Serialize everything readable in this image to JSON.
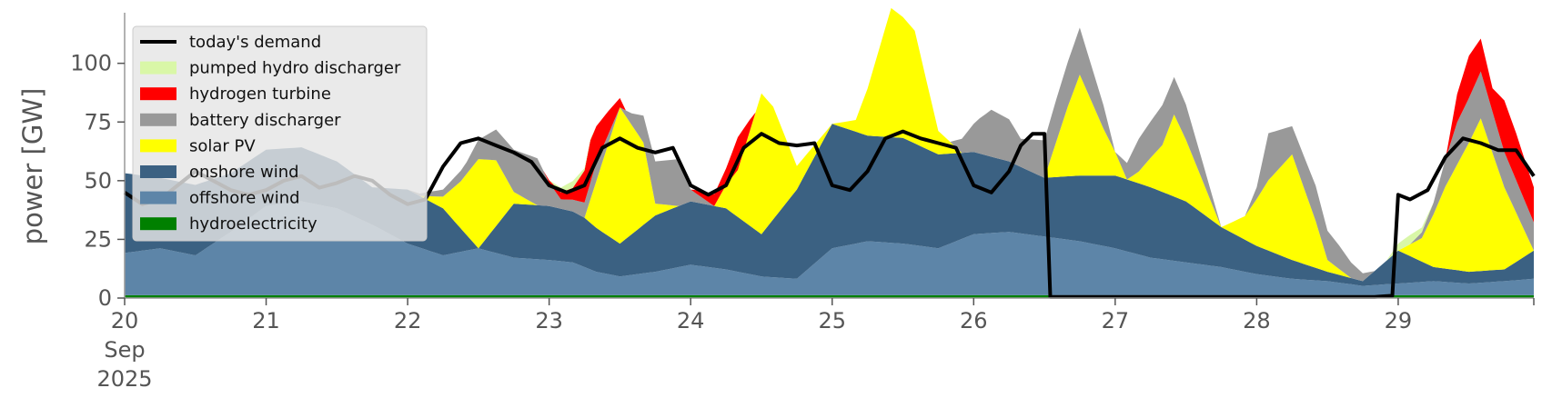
{
  "chart_data": {
    "type": "area",
    "ylabel": "power [GW]",
    "ylim": [
      0,
      120
    ],
    "yticks": [
      0,
      25,
      50,
      75,
      100
    ],
    "xlim": [
      0,
      239
    ],
    "xticks": [
      {
        "h": 0,
        "label": "20",
        "sub": [
          "Sep",
          "2025"
        ]
      },
      {
        "h": 24,
        "label": "21"
      },
      {
        "h": 48,
        "label": "22"
      },
      {
        "h": 72,
        "label": "23"
      },
      {
        "h": 96,
        "label": "24"
      },
      {
        "h": 120,
        "label": "25"
      },
      {
        "h": 144,
        "label": "26"
      },
      {
        "h": 168,
        "label": "27"
      },
      {
        "h": 192,
        "label": "28"
      },
      {
        "h": 216,
        "label": "29"
      }
    ],
    "grid": false,
    "legend_position": "top-left",
    "stack_order": [
      "hydroelectricity",
      "offshore wind",
      "onshore wind",
      "solar PV",
      "battery discharger",
      "hydrogen turbine",
      "pumped hydro discharger"
    ],
    "legend": [
      {
        "label": "today's demand",
        "kind": "line",
        "color": "#000000"
      },
      {
        "label": "pumped hydro discharger",
        "kind": "area",
        "color": "#d9f7a7"
      },
      {
        "label": "hydrogen turbine",
        "kind": "area",
        "color": "#ff0000"
      },
      {
        "label": "battery discharger",
        "kind": "area",
        "color": "#999999"
      },
      {
        "label": "solar PV",
        "kind": "area",
        "color": "#ffff00"
      },
      {
        "label": "onshore wind",
        "kind": "area",
        "color": "#3b6182"
      },
      {
        "label": "offshore wind",
        "kind": "area",
        "color": "#5d85a8"
      },
      {
        "label": "hydroelectricity",
        "kind": "area",
        "color": "#008000"
      }
    ],
    "series": [
      {
        "name": "hydroelectricity",
        "color": "#008000",
        "x": [
          0,
          239
        ],
        "values": [
          1.2,
          1.2
        ]
      },
      {
        "name": "offshore wind",
        "color": "#5d85a8",
        "x": [
          0,
          6,
          12,
          18,
          24,
          30,
          36,
          42,
          48,
          54,
          60,
          66,
          72,
          76,
          80,
          84,
          90,
          96,
          102,
          108,
          114,
          120,
          126,
          132,
          138,
          144,
          150,
          156,
          162,
          168,
          174,
          180,
          186,
          192,
          198,
          204,
          210,
          216,
          222,
          228,
          234,
          239
        ],
        "values": [
          18,
          20,
          17,
          27,
          38,
          40,
          37,
          30,
          22,
          17,
          20,
          16,
          15,
          14,
          10,
          8,
          10,
          13,
          11,
          8,
          7,
          20,
          23,
          22,
          20,
          26,
          27,
          25,
          23,
          20,
          16,
          14,
          12,
          9,
          7,
          6,
          4,
          5,
          6,
          5,
          6,
          7
        ]
      },
      {
        "name": "onshore wind",
        "color": "#3b6182",
        "x": [
          0,
          6,
          12,
          18,
          24,
          30,
          36,
          42,
          48,
          54,
          60,
          66,
          72,
          78,
          84,
          90,
          96,
          102,
          108,
          114,
          120,
          126,
          132,
          138,
          144,
          150,
          156,
          162,
          168,
          174,
          180,
          186,
          192,
          198,
          204,
          210,
          216,
          222,
          228,
          234,
          239
        ],
        "values": [
          34,
          30,
          30,
          25,
          24,
          23,
          20,
          16,
          23,
          20,
          0,
          23,
          23,
          21,
          14,
          24,
          27,
          26,
          18,
          38,
          53,
          45,
          45,
          40,
          35,
          30,
          25,
          28,
          31,
          30,
          26,
          17,
          12,
          8,
          4,
          2,
          14,
          6,
          5,
          5,
          12
        ]
      },
      {
        "name": "solar PV",
        "color": "#ffff00",
        "x": [
          0,
          48,
          50,
          54,
          57,
          60,
          63,
          66,
          70,
          72,
          78,
          80,
          84,
          88,
          90,
          94,
          96,
          100,
          104,
          108,
          110,
          114,
          120,
          124,
          126,
          130,
          134,
          138,
          142,
          146,
          150,
          154,
          156,
          160,
          162,
          166,
          170,
          172,
          176,
          178,
          186,
          190,
          194,
          198,
          202,
          204,
          208,
          210,
          216,
          220,
          224,
          228,
          230,
          234,
          239
        ],
        "values": [
          0,
          0,
          0,
          5,
          20,
          38,
          28,
          5,
          0,
          0,
          0,
          20,
          58,
          35,
          5,
          0,
          0,
          0,
          20,
          60,
          48,
          10,
          0,
          5,
          20,
          55,
          48,
          10,
          0,
          0,
          0,
          0,
          0,
          30,
          43,
          20,
          0,
          5,
          20,
          35,
          0,
          10,
          30,
          45,
          20,
          5,
          0,
          0,
          0,
          10,
          35,
          55,
          65,
          35,
          0
        ]
      },
      {
        "name": "battery discharger",
        "color": "#999999",
        "x": [
          0,
          48,
          58,
          66,
          70,
          72,
          74,
          76,
          80,
          84,
          86,
          90,
          94,
          96,
          100,
          104,
          108,
          110,
          120,
          140,
          145,
          147,
          150,
          152,
          154,
          158,
          162,
          166,
          168,
          172,
          176,
          180,
          186,
          190,
          192,
          194,
          198,
          202,
          206,
          212,
          214,
          218,
          222,
          226,
          230,
          234,
          239
        ],
        "values": [
          0,
          0,
          5,
          18,
          20,
          10,
          4,
          5,
          8,
          0,
          5,
          18,
          20,
          5,
          0,
          0,
          0,
          0,
          0,
          0,
          15,
          20,
          18,
          12,
          14,
          18,
          20,
          10,
          0,
          14,
          17,
          15,
          0,
          0,
          5,
          20,
          12,
          15,
          10,
          0,
          0,
          0,
          5,
          18,
          20,
          15,
          12
        ]
      },
      {
        "name": "hydrogen turbine",
        "color": "#ff0000",
        "x": [
          0,
          71,
          73,
          76,
          79,
          82,
          84,
          85,
          96,
          98,
          100,
          102,
          104,
          106,
          107,
          224,
          226,
          228,
          232,
          234,
          236,
          239
        ],
        "values": [
          0,
          0,
          2,
          5,
          18,
          10,
          4,
          0,
          0,
          3,
          5,
          7,
          14,
          5,
          0,
          0,
          12,
          18,
          10,
          22,
          20,
          15
        ]
      },
      {
        "name": "pumped hydro discharger",
        "color": "#d9f7a7",
        "x": [
          0,
          72,
          74,
          76,
          78,
          80,
          214,
          216,
          218,
          220,
          222,
          239
        ],
        "values": [
          0,
          0,
          2,
          3,
          1,
          0,
          0,
          3,
          4,
          2,
          0,
          0
        ]
      },
      {
        "name": "today's demand",
        "color": "#000000",
        "kind": "line",
        "x": [
          0,
          3,
          6,
          9,
          12,
          15,
          18,
          21,
          24,
          27,
          30,
          33,
          36,
          39,
          42,
          45,
          48,
          51,
          54,
          57,
          60,
          63,
          66,
          69,
          72,
          75,
          78,
          81,
          84,
          87,
          90,
          93,
          96,
          99,
          102,
          105,
          108,
          111,
          114,
          117,
          120,
          123,
          126,
          129,
          132,
          135,
          138,
          141,
          144,
          147,
          150,
          152,
          154,
          156,
          157,
          158,
          162,
          168,
          180,
          192,
          204,
          212,
          215,
          216,
          218,
          221,
          224,
          227,
          230,
          233,
          236,
          239
        ],
        "values": [
          45,
          40,
          42,
          48,
          54,
          50,
          46,
          44,
          46,
          50,
          52,
          47,
          49,
          52,
          50,
          44,
          40,
          42,
          56,
          66,
          68,
          65,
          62,
          58,
          48,
          45,
          48,
          64,
          68,
          64,
          62,
          64,
          48,
          44,
          48,
          64,
          70,
          66,
          65,
          66,
          48,
          46,
          54,
          68,
          71,
          68,
          66,
          64,
          48,
          45,
          54,
          65,
          70,
          70,
          0.5,
          0.5,
          0.5,
          0.5,
          0.5,
          0.5,
          0.5,
          0.5,
          1,
          44,
          42,
          46,
          60,
          68,
          66,
          63,
          63,
          52
        ]
      }
    ]
  }
}
